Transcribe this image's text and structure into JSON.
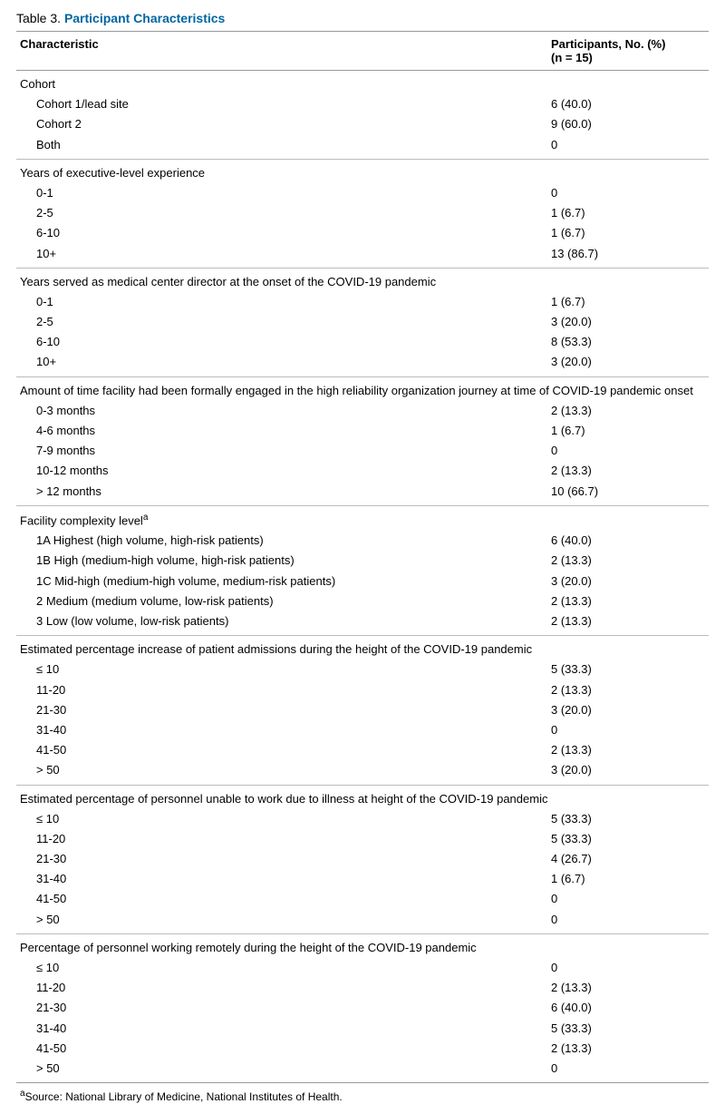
{
  "table_label": "Table 3.",
  "table_title": "Participant Characteristics",
  "header_left": "Characteristic",
  "header_right_line1": "Participants, No. (%)",
  "header_right_line2": "(n = 15)",
  "groups": [
    {
      "label": "Cohort",
      "rows": [
        {
          "label": "Cohort 1/lead site",
          "value": "6 (40.0)"
        },
        {
          "label": "Cohort 2",
          "value": "9 (60.0)"
        },
        {
          "label": "Both",
          "value": "0"
        }
      ]
    },
    {
      "label": "Years of executive-level experience",
      "rows": [
        {
          "label": "0-1",
          "value": "0"
        },
        {
          "label": "2-5",
          "value": "1 (6.7)"
        },
        {
          "label": "6-10",
          "value": "1 (6.7)"
        },
        {
          "label": "10+",
          "value": "13 (86.7)"
        }
      ]
    },
    {
      "label": "Years served as medical center director at the onset of the COVID-19 pandemic",
      "rows": [
        {
          "label": "0-1",
          "value": "1 (6.7)"
        },
        {
          "label": "2-5",
          "value": "3 (20.0)"
        },
        {
          "label": "6-10",
          "value": "8 (53.3)"
        },
        {
          "label": "10+",
          "value": "3 (20.0)"
        }
      ]
    },
    {
      "label": "Amount of time facility had been formally engaged in the high reliability organization journey at time of COVID-19 pandemic onset",
      "rows": [
        {
          "label": "0-3 months",
          "value": "2 (13.3)"
        },
        {
          "label": "4-6 months",
          "value": "1 (6.7)"
        },
        {
          "label": "7-9 months",
          "value": "0"
        },
        {
          "label": "10-12 months",
          "value": "2 (13.3)"
        },
        {
          "label": "> 12 months",
          "value": "10 (66.7)"
        }
      ]
    },
    {
      "label": "Facility complexity level",
      "sup": "a",
      "rows": [
        {
          "label": "1A Highest (high volume, high-risk patients)",
          "value": "6 (40.0)"
        },
        {
          "label": "1B High (medium-high volume, high-risk patients)",
          "value": "2 (13.3)"
        },
        {
          "label": "1C Mid-high (medium-high volume, medium-risk patients)",
          "value": "3 (20.0)"
        },
        {
          "label": "2 Medium (medium volume, low-risk patients)",
          "value": "2 (13.3)"
        },
        {
          "label": "3 Low (low volume, low-risk patients)",
          "value": "2 (13.3)"
        }
      ]
    },
    {
      "label": "Estimated percentage increase of patient admissions during the height of the COVID-19 pandemic",
      "rows": [
        {
          "label": "≤ 10",
          "value": "5 (33.3)"
        },
        {
          "label": "11-20",
          "value": "2 (13.3)"
        },
        {
          "label": "21-30",
          "value": "3 (20.0)"
        },
        {
          "label": "31-40",
          "value": "0"
        },
        {
          "label": "41-50",
          "value": "2 (13.3)"
        },
        {
          "label": "> 50",
          "value": "3 (20.0)"
        }
      ]
    },
    {
      "label": "Estimated percentage of personnel unable to work due to illness at height of the COVID-19 pandemic",
      "rows": [
        {
          "label": "≤ 10",
          "value": "5 (33.3)"
        },
        {
          "label": "11-20",
          "value": "5 (33.3)"
        },
        {
          "label": "21-30",
          "value": "4 (26.7)"
        },
        {
          "label": "31-40",
          "value": "1 (6.7)"
        },
        {
          "label": "41-50",
          "value": "0"
        },
        {
          "label": "> 50",
          "value": "0"
        }
      ]
    },
    {
      "label": "Percentage of personnel working remotely during the height of the COVID-19 pandemic",
      "rows": [
        {
          "label": "≤ 10",
          "value": "0"
        },
        {
          "label": "11-20",
          "value": "2 (13.3)"
        },
        {
          "label": "21-30",
          "value": "6 (40.0)"
        },
        {
          "label": "31-40",
          "value": "5 (33.3)"
        },
        {
          "label": "41-50",
          "value": "2 (13.3)"
        },
        {
          "label": "> 50",
          "value": "0"
        }
      ]
    }
  ],
  "footnote_sup": "a",
  "footnote": "Source: National Library of Medicine, National Institutes of Health."
}
